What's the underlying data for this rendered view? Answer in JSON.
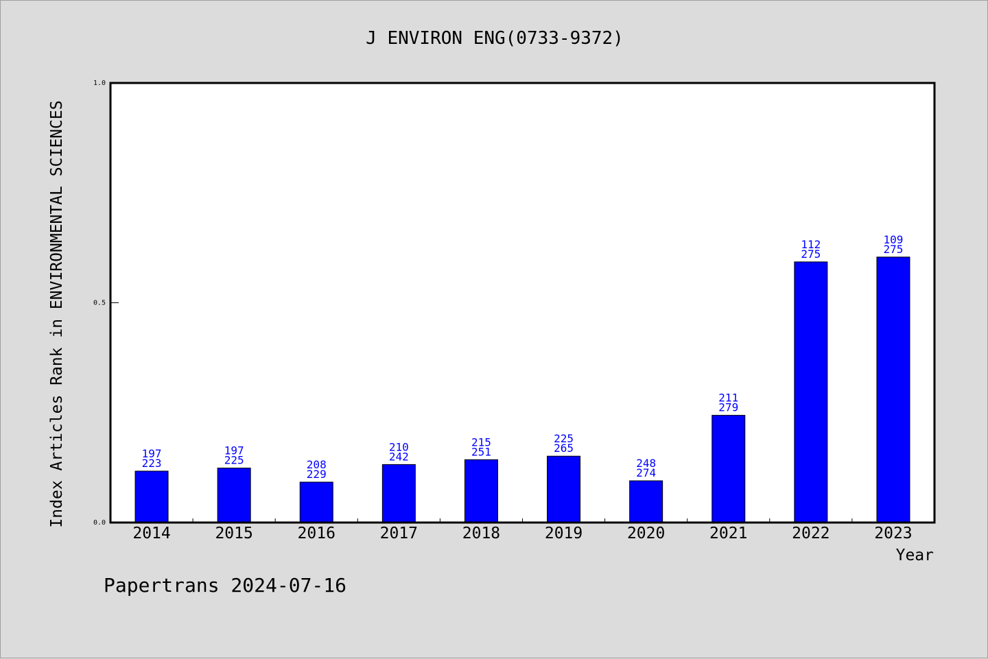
{
  "chart_data": {
    "type": "bar",
    "title": "J ENVIRON ENG(0733-9372)",
    "xlabel": "Year",
    "ylabel": "Index Articles Rank in ENVIRONMENTAL SCIENCES",
    "ylim": [
      0.0,
      1.0
    ],
    "yticks": [
      "0.0",
      "0.5",
      "1.0"
    ],
    "categories": [
      "2014",
      "2015",
      "2016",
      "2017",
      "2018",
      "2019",
      "2020",
      "2021",
      "2022",
      "2023"
    ],
    "values": [
      0.117,
      0.124,
      0.092,
      0.132,
      0.143,
      0.151,
      0.095,
      0.244,
      0.593,
      0.604
    ],
    "labels_top": [
      "197",
      "197",
      "208",
      "210",
      "215",
      "225",
      "248",
      "211",
      "112",
      "109"
    ],
    "labels_bottom": [
      "223",
      "225",
      "229",
      "242",
      "251",
      "265",
      "274",
      "279",
      "275",
      "275"
    ],
    "bar_color": "#0000ff",
    "label_color": "#0000ff",
    "background_color": "#dcdcdc",
    "plot_background": "#ffffff",
    "grid": false,
    "legend": false
  },
  "footer": {
    "text": "Papertrans 2024-07-16"
  }
}
